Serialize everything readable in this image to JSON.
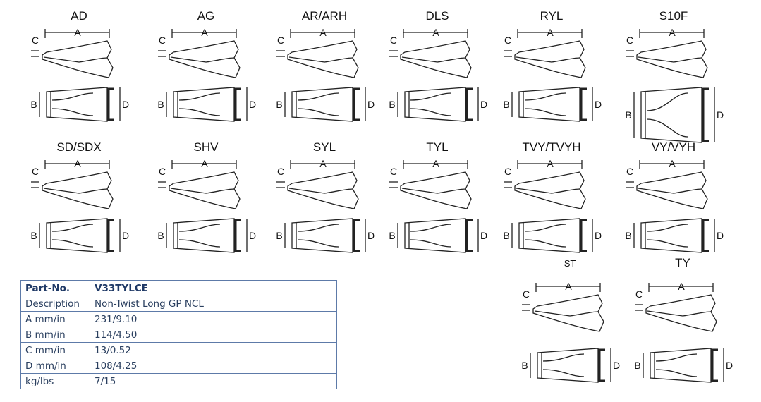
{
  "dimension_labels": {
    "a": "A",
    "b": "B",
    "c": "C",
    "d": "D"
  },
  "teeth": [
    {
      "name": "AD",
      "row": 1,
      "col": 1
    },
    {
      "name": "AG",
      "row": 1,
      "col": 2
    },
    {
      "name": "AR/ARH",
      "row": 1,
      "col": 3
    },
    {
      "name": "DLS",
      "row": 1,
      "col": 4
    },
    {
      "name": "RYL",
      "row": 1,
      "col": 5
    },
    {
      "name": "S10F",
      "row": 1,
      "col": 6
    },
    {
      "name": "SD/SDX",
      "row": 2,
      "col": 1
    },
    {
      "name": "SHV",
      "row": 2,
      "col": 2
    },
    {
      "name": "SYL",
      "row": 2,
      "col": 3
    },
    {
      "name": "TYL",
      "row": 2,
      "col": 4
    },
    {
      "name": "TVY/TVYH",
      "row": 2,
      "col": 5
    },
    {
      "name": "VY/VYH",
      "row": 2,
      "col": 6
    },
    {
      "name": "ST",
      "row": 3,
      "col": 5
    },
    {
      "name": "TY",
      "row": 3,
      "col": 6
    }
  ],
  "spec_table": {
    "rows": [
      {
        "label": "Part-No.",
        "value": "V33TYLCE"
      },
      {
        "label": "Description",
        "value": "Non-Twist Long GP NCL"
      },
      {
        "label": "A mm/in",
        "value": "231/9.10"
      },
      {
        "label": "B mm/in",
        "value": "114/4.50"
      },
      {
        "label": "C mm/in",
        "value": "13/0.52"
      },
      {
        "label": "D mm/in",
        "value": "108/4.25"
      },
      {
        "label": "kg/lbs",
        "value": "7/15"
      }
    ]
  },
  "colors": {
    "line": "#222222",
    "table_border": "#5d7aa8",
    "table_text": "#2a3f5f"
  }
}
